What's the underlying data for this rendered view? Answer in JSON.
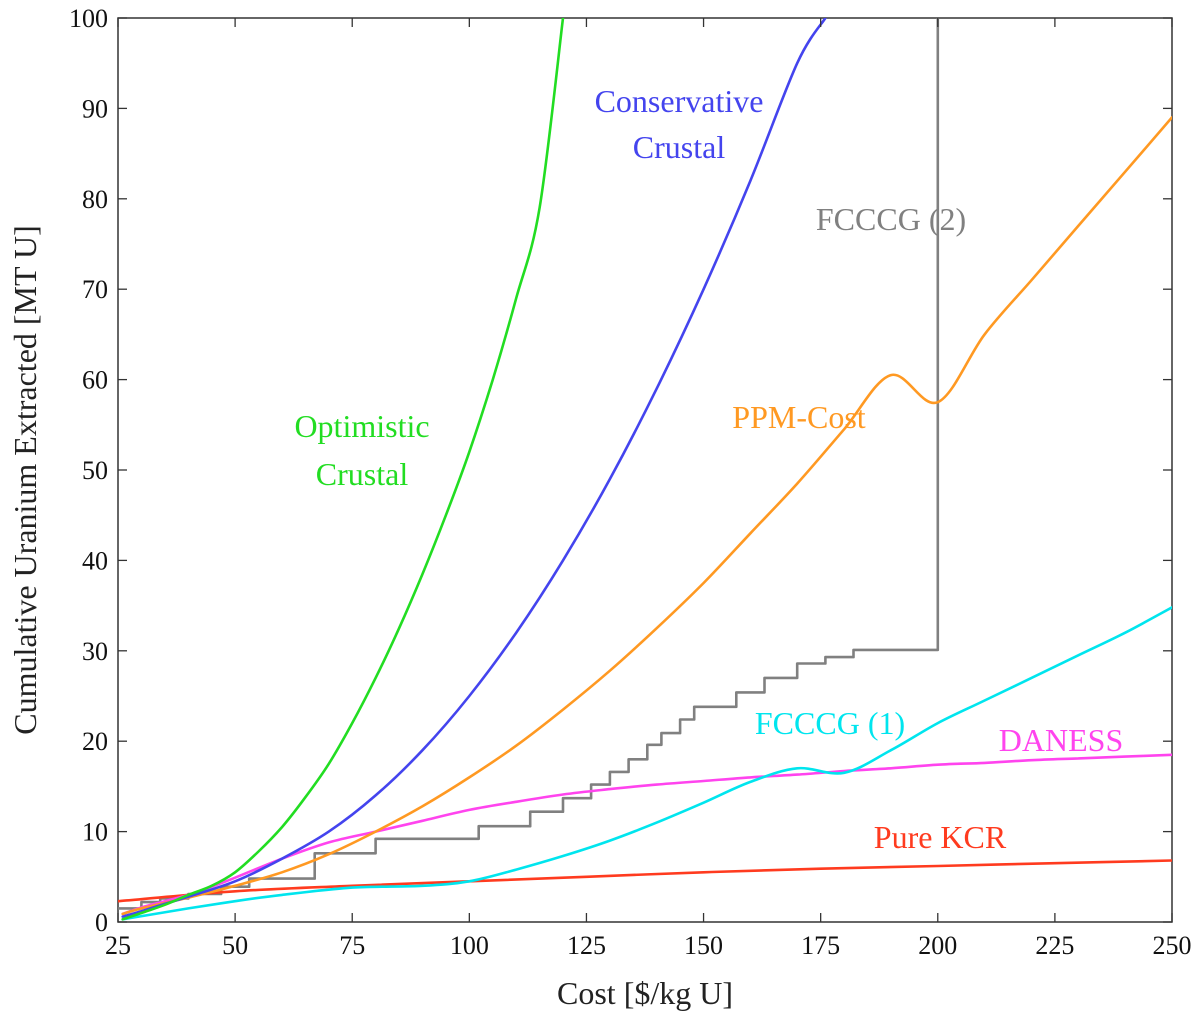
{
  "chart_data": {
    "type": "line",
    "title": "",
    "xlabel": "Cost [$/kg U]",
    "ylabel": "Cumulative Uranium Extracted [MT U]",
    "xlim": [
      25,
      250
    ],
    "ylim": [
      0,
      100
    ],
    "xticks": [
      25,
      50,
      75,
      100,
      125,
      150,
      175,
      200,
      225,
      250
    ],
    "xtick_labels": [
      "25",
      "50",
      "75",
      "100",
      "125",
      "150",
      "175",
      "200",
      "225",
      "250"
    ],
    "yticks": [
      0,
      10,
      20,
      30,
      40,
      50,
      60,
      70,
      80,
      90,
      100
    ],
    "ytick_labels": [
      "0",
      "10",
      "20",
      "30",
      "40",
      "50",
      "60",
      "70",
      "80",
      "90",
      "100"
    ],
    "grid": false,
    "series": [
      {
        "name": "Optimistic Crustal",
        "label_lines": [
          "Optimistic",
          "Crustal"
        ],
        "color": "#22dd22",
        "style": "smooth",
        "points": [
          [
            26,
            0.3
          ],
          [
            30,
            1.0
          ],
          [
            35,
            1.9
          ],
          [
            40,
            3.0
          ],
          [
            45,
            4.0
          ],
          [
            50,
            5.5
          ],
          [
            55,
            7.8
          ],
          [
            60,
            10.5
          ],
          [
            65,
            13.8
          ],
          [
            70,
            17.5
          ],
          [
            75,
            22.0
          ],
          [
            80,
            27.0
          ],
          [
            85,
            32.5
          ],
          [
            90,
            38.5
          ],
          [
            95,
            45.0
          ],
          [
            100,
            52.0
          ],
          [
            105,
            60.0
          ],
          [
            110,
            69.0
          ],
          [
            115,
            79.0
          ],
          [
            120,
            100
          ]
        ]
      },
      {
        "name": "Conservative Crustal",
        "label_lines": [
          "Conservative",
          "Crustal"
        ],
        "color": "#4444ee",
        "style": "smooth",
        "points": [
          [
            26,
            0.6
          ],
          [
            30,
            1.2
          ],
          [
            35,
            2.0
          ],
          [
            40,
            2.8
          ],
          [
            50,
            4.5
          ],
          [
            60,
            7.0
          ],
          [
            70,
            10.0
          ],
          [
            80,
            14.0
          ],
          [
            90,
            19.0
          ],
          [
            100,
            25.0
          ],
          [
            110,
            32.0
          ],
          [
            120,
            40.0
          ],
          [
            130,
            49.0
          ],
          [
            140,
            59.0
          ],
          [
            150,
            70.0
          ],
          [
            160,
            82.0
          ],
          [
            170,
            95.0
          ],
          [
            176,
            100
          ]
        ]
      },
      {
        "name": "PPM-Cost",
        "label_lines": [
          "PPM-Cost"
        ],
        "color": "#ff9922",
        "style": "smooth",
        "points": [
          [
            26,
            0.9
          ],
          [
            30,
            1.5
          ],
          [
            40,
            2.7
          ],
          [
            50,
            4.0
          ],
          [
            60,
            5.5
          ],
          [
            70,
            7.5
          ],
          [
            80,
            10.0
          ],
          [
            90,
            12.8
          ],
          [
            100,
            16.0
          ],
          [
            110,
            19.5
          ],
          [
            120,
            23.5
          ],
          [
            130,
            27.8
          ],
          [
            140,
            32.5
          ],
          [
            150,
            37.5
          ],
          [
            160,
            43.0
          ],
          [
            170,
            48.5
          ],
          [
            180,
            54.5
          ],
          [
            190,
            60.5
          ],
          [
            200,
            57.5
          ],
          [
            210,
            65.0
          ],
          [
            220,
            71.0
          ],
          [
            230,
            77.0
          ],
          [
            240,
            83.0
          ],
          [
            250,
            89.0
          ]
        ]
      },
      {
        "name": "FCCCG (2)",
        "label_lines": [
          "FCCCG (2)"
        ],
        "color": "#808080",
        "style": "step",
        "points": [
          [
            25,
            1.5
          ],
          [
            30,
            1.5
          ],
          [
            30,
            2.2
          ],
          [
            34,
            2.2
          ],
          [
            34,
            2.6
          ],
          [
            40,
            2.6
          ],
          [
            40,
            3.1
          ],
          [
            47,
            3.1
          ],
          [
            47,
            3.9
          ],
          [
            53,
            3.9
          ],
          [
            53,
            4.8
          ],
          [
            67,
            4.8
          ],
          [
            67,
            7.6
          ],
          [
            80,
            7.6
          ],
          [
            80,
            9.2
          ],
          [
            102,
            9.2
          ],
          [
            102,
            10.6
          ],
          [
            113,
            10.6
          ],
          [
            113,
            12.2
          ],
          [
            120,
            12.2
          ],
          [
            120,
            13.7
          ],
          [
            126,
            13.7
          ],
          [
            126,
            15.2
          ],
          [
            130,
            15.2
          ],
          [
            130,
            16.6
          ],
          [
            134,
            16.6
          ],
          [
            134,
            18.0
          ],
          [
            138,
            18.0
          ],
          [
            138,
            19.6
          ],
          [
            141,
            19.6
          ],
          [
            141,
            20.9
          ],
          [
            145,
            20.9
          ],
          [
            145,
            22.4
          ],
          [
            148,
            22.4
          ],
          [
            148,
            23.8
          ],
          [
            157,
            23.8
          ],
          [
            157,
            25.4
          ],
          [
            163,
            25.4
          ],
          [
            163,
            27.0
          ],
          [
            170,
            27.0
          ],
          [
            170,
            28.6
          ],
          [
            176,
            28.6
          ],
          [
            176,
            29.3
          ],
          [
            182,
            29.3
          ],
          [
            182,
            30.1
          ],
          [
            200,
            30.1
          ],
          [
            200,
            100
          ]
        ]
      },
      {
        "name": "FCCCG (1)",
        "label_lines": [
          "FCCCG (1)"
        ],
        "color": "#00e5ee",
        "style": "smooth",
        "points": [
          [
            26,
            0.3
          ],
          [
            40,
            1.5
          ],
          [
            50,
            2.3
          ],
          [
            60,
            3.0
          ],
          [
            75,
            3.8
          ],
          [
            90,
            4.0
          ],
          [
            100,
            4.5
          ],
          [
            110,
            5.8
          ],
          [
            120,
            7.3
          ],
          [
            130,
            9.0
          ],
          [
            140,
            11.0
          ],
          [
            150,
            13.2
          ],
          [
            160,
            15.5
          ],
          [
            170,
            17.0
          ],
          [
            180,
            16.5
          ],
          [
            190,
            19.0
          ],
          [
            200,
            22.0
          ],
          [
            210,
            24.5
          ],
          [
            220,
            27.0
          ],
          [
            230,
            29.5
          ],
          [
            240,
            32.0
          ],
          [
            250,
            34.8
          ]
        ]
      },
      {
        "name": "DANESS",
        "label_lines": [
          "DANESS"
        ],
        "color": "#ff44ee",
        "style": "smooth",
        "points": [
          [
            26,
            0.9
          ],
          [
            30,
            1.6
          ],
          [
            35,
            2.3
          ],
          [
            40,
            3.0
          ],
          [
            45,
            3.9
          ],
          [
            50,
            4.9
          ],
          [
            60,
            7.0
          ],
          [
            70,
            8.8
          ],
          [
            80,
            10.0
          ],
          [
            90,
            11.2
          ],
          [
            100,
            12.4
          ],
          [
            110,
            13.3
          ],
          [
            120,
            14.1
          ],
          [
            130,
            14.7
          ],
          [
            140,
            15.2
          ],
          [
            150,
            15.6
          ],
          [
            160,
            16.0
          ],
          [
            170,
            16.3
          ],
          [
            180,
            16.7
          ],
          [
            190,
            17.0
          ],
          [
            200,
            17.4
          ],
          [
            210,
            17.6
          ],
          [
            220,
            17.9
          ],
          [
            230,
            18.1
          ],
          [
            240,
            18.3
          ],
          [
            250,
            18.5
          ]
        ]
      },
      {
        "name": "Pure KCR",
        "label_lines": [
          "Pure KCR"
        ],
        "color": "#ff3b1f",
        "style": "smooth",
        "points": [
          [
            25,
            2.3
          ],
          [
            50,
            3.4
          ],
          [
            75,
            4.0
          ],
          [
            100,
            4.5
          ],
          [
            125,
            5.0
          ],
          [
            150,
            5.5
          ],
          [
            175,
            5.9
          ],
          [
            200,
            6.2
          ],
          [
            225,
            6.5
          ],
          [
            250,
            6.8
          ]
        ]
      }
    ]
  }
}
